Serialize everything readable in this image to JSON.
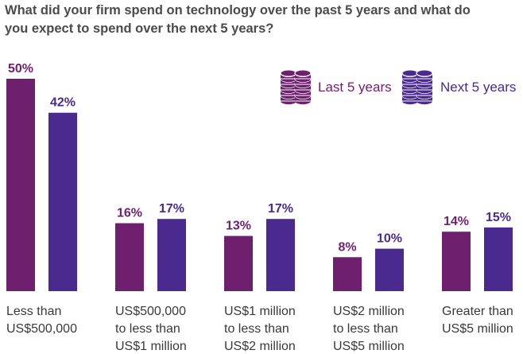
{
  "colors": {
    "last5": "#6e1f6e",
    "next5": "#4a2a8e",
    "title": "#4b4b4b",
    "text": "#3a3a3a",
    "background": "#ffffff"
  },
  "chart_data": {
    "type": "bar",
    "title_lines": [
      "What did your firm spend on technology over the past 5 years and what do",
      "you expect to spend over the next 5 years?"
    ],
    "categories": [
      [
        "Less than",
        "US$500,000"
      ],
      [
        "US$500,000",
        "to less than",
        "US$1 million"
      ],
      [
        "US$1 million",
        "to less than",
        "US$2 million"
      ],
      [
        "US$2 million",
        "to less than",
        "US$5 million"
      ],
      [
        "Greater than",
        "US$5 million"
      ]
    ],
    "series": [
      {
        "name": "Last 5 years",
        "icon": "coin-stack-icon",
        "values": [
          50,
          16,
          13,
          8,
          14
        ],
        "labels": [
          "50%",
          "16%",
          "13%",
          "8%",
          "14%"
        ]
      },
      {
        "name": "Next 5 years",
        "icon": "coin-stack-icon",
        "values": [
          42,
          17,
          17,
          10,
          15
        ],
        "labels": [
          "42%",
          "17%",
          "17%",
          "10%",
          "15%"
        ]
      }
    ],
    "unit": "%",
    "ylim": [
      0,
      50
    ],
    "grid": false,
    "legend_position": "top-right"
  }
}
